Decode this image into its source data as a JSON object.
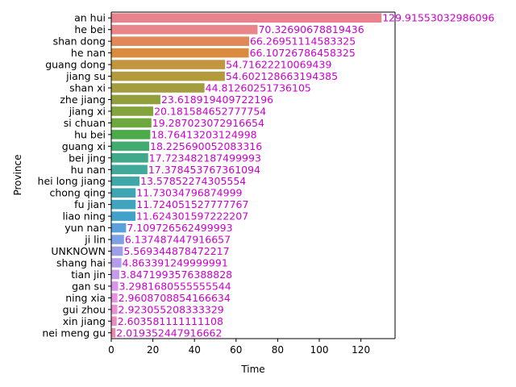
{
  "chart_data": {
    "type": "bar",
    "orientation": "horizontal",
    "title": "",
    "xlabel": "Time",
    "ylabel": "Province",
    "xlim": [
      0,
      136.42
    ],
    "xticks": [
      0,
      20,
      40,
      60,
      80,
      100,
      120
    ],
    "grid": false,
    "legend": "none",
    "label_color": "#cc00cc",
    "categories": [
      "an hui",
      "he bei",
      "shan dong",
      "he nan",
      "guang dong",
      "jiang su",
      "shan xi",
      "zhe jiang",
      "jiang xi",
      "si chuan",
      "hu bei",
      "guang xi",
      "bei jing",
      "hu nan",
      "hei long jiang",
      "chong qing",
      "fu jian",
      "liao ning",
      "yun nan",
      "ji lin",
      "UNKNOWN",
      "shang hai",
      "tian jin",
      "gan su",
      "ning xia",
      "gui zhou",
      "xin jiang",
      "nei meng gu"
    ],
    "values": [
      129.91553032986096,
      70.32690678819436,
      66.26951114583325,
      66.10726786458325,
      54.71622210069439,
      54.602128663194385,
      44.81260251736105,
      23.618919409722196,
      20.181584652777754,
      19.287023072916654,
      18.76413203124998,
      18.225690052083316,
      17.723482187499993,
      17.378453767361094,
      13.57852274305554,
      11.73034796874999,
      11.724051527777767,
      11.624301597222207,
      7.109726562499993,
      6.137487447916657,
      5.569344878472217,
      4.863391249999991,
      3.8471993576388828,
      3.2981680555555544,
      2.9608708854166634,
      2.923055208333329,
      2.603581111111108,
      2.019352447916662
    ],
    "value_labels": [
      "129.91553032986096",
      "70.32690678819436",
      "66.26951114583325",
      "66.10726786458325",
      "54.71622210069439",
      "54.602128663194385",
      "44.81260251736105",
      "23.618919409722196",
      "20.181584652777754",
      "19.287023072916654",
      "18.76413203124998",
      "18.225690052083316",
      "17.723482187499993",
      "17.378453767361094",
      "13.57852274305554",
      "11.73034796874999",
      "11.724051527777767",
      "11.624301597222207",
      "7.109726562499993",
      "6.137487447916657",
      "5.569344878472217",
      "4.863391249999991",
      "3.8471993576388828",
      "3.2981680555555544",
      "2.9608708854166634",
      "2.923055208333329",
      "2.603581111111108",
      "2.019352447916662"
    ],
    "colors": [
      "#e8828d",
      "#e9868a",
      "#e18859",
      "#d98c3e",
      "#c2953f",
      "#b29a3d",
      "#a39d3f",
      "#939f3c",
      "#83a33c",
      "#6ea73d",
      "#4cab48",
      "#42ab70",
      "#40a98a",
      "#3fa99a",
      "#3fa7a8",
      "#3fa5b3",
      "#40a4be",
      "#42a1ca",
      "#5aa0da",
      "#7ea0e4",
      "#9c9fe7",
      "#b39ce9",
      "#c69aea",
      "#d797e8",
      "#e493e0",
      "#ea8fd2",
      "#ea8bc0",
      "#ea87ad"
    ]
  }
}
